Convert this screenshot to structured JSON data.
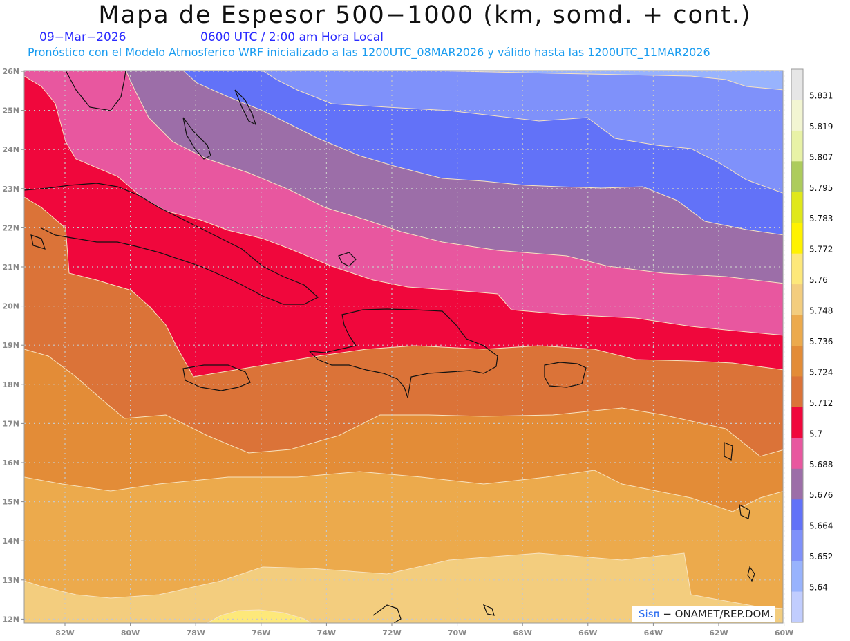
{
  "header": {
    "title": "Mapa de Espesor 500−1000 (km, somd. + cont.)",
    "date": "09−Mar−2026",
    "time": "0600 UTC / 2:00 am Hora Local",
    "subtitle": "Pronóstico con el Modelo Atmosferico WRF inicializado a las 1200UTC_08MAR2026 y válido hasta las  1200UTC_11MAR2026"
  },
  "axes": {
    "lat_labels": [
      "26N",
      "25N",
      "24N",
      "23N",
      "22N",
      "21N",
      "20N",
      "19N",
      "18N",
      "17N",
      "16N",
      "15N",
      "14N",
      "13N",
      "12N"
    ],
    "lon_labels": [
      "82W",
      "80W",
      "78W",
      "76W",
      "74W",
      "72W",
      "70W",
      "68W",
      "66W",
      "64W",
      "62W",
      "60W"
    ]
  },
  "colorbar": {
    "labels": [
      "5.831",
      "5.819",
      "5.807",
      "5.795",
      "5.783",
      "5.772",
      "5.76",
      "5.748",
      "5.736",
      "5.724",
      "5.712",
      "5.7",
      "5.688",
      "5.676",
      "5.664",
      "5.652",
      "5.64"
    ],
    "colors": [
      "#e6e6e6",
      "#f2f5d2",
      "#e8f2a6",
      "#adcc5c",
      "#e0e81a",
      "#fff200",
      "#fde87a",
      "#f3cd7e",
      "#ecaa4c",
      "#e38c37",
      "#db7338",
      "#f0073c",
      "#e8579f",
      "#9c6ea8",
      "#6272f8",
      "#7f91fa",
      "#98b3fd",
      "#c1cdfe"
    ]
  },
  "credit": {
    "brand": "Sisπ",
    "text": "− ONAMET/REP.DOM."
  }
}
